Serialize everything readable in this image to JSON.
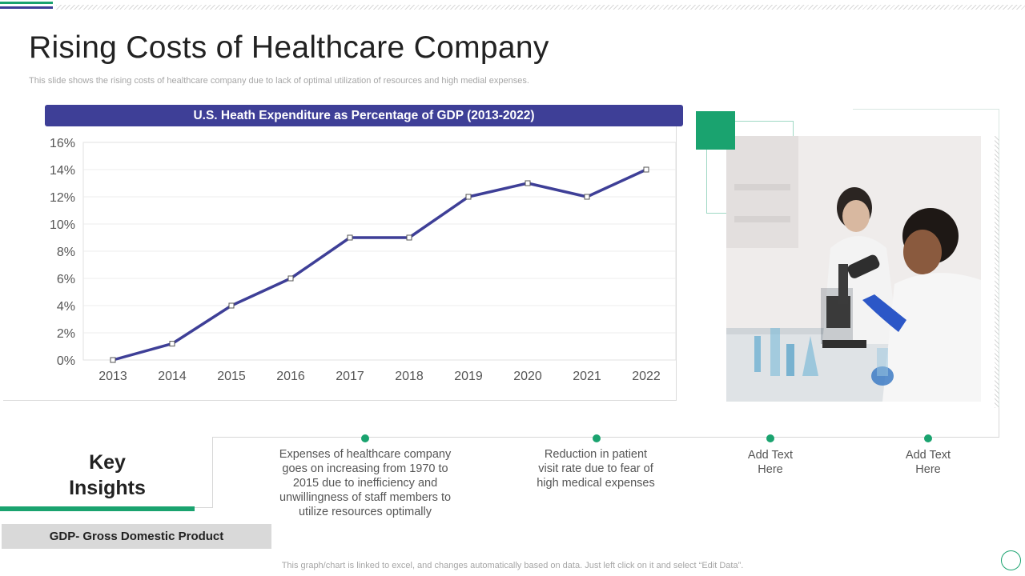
{
  "title": "Rising Costs of Healthcare Company",
  "subtitle": "This slide shows the rising costs of healthcare company due to lack of optimal utilization of resources and high medial expenses.",
  "chart_data": {
    "type": "line",
    "title": "U.S. Heath Expenditure as Percentage of GDP (2013-2022)",
    "categories": [
      "2013",
      "2014",
      "2015",
      "2016",
      "2017",
      "2018",
      "2019",
      "2020",
      "2021",
      "2022"
    ],
    "values": [
      0,
      1.2,
      4,
      6,
      9,
      9,
      12,
      13,
      12,
      14
    ],
    "yticks": [
      "0%",
      "2%",
      "4%",
      "6%",
      "8%",
      "10%",
      "12%",
      "14%",
      "16%"
    ],
    "ylim": [
      0,
      16
    ],
    "xlabel": "",
    "ylabel": "",
    "grid": true,
    "series_color": "#3e3f97"
  },
  "photo": {
    "alt": "Two scientists working with a microscope in a laboratory"
  },
  "key_insights": {
    "title_line1": "Key",
    "title_line2": "Insights",
    "items": [
      {
        "text": "Expenses of healthcare company goes on increasing from 1970 to 2015 due to inefficiency and unwillingness of staff members to utilize resources optimally"
      },
      {
        "text": "Reduction in patient visit rate due to fear of high medical expenses"
      },
      {
        "text": "Add Text Here"
      },
      {
        "text": "Add Text Here"
      }
    ]
  },
  "gdp_note": "GDP- Gross Domestic Product",
  "footer": "This graph/chart is linked to excel,  and changes automatically based on data. Just left click on it and select “Edit Data”.",
  "colors": {
    "accent_green": "#1aa36f",
    "accent_blue": "#3e3f97"
  }
}
